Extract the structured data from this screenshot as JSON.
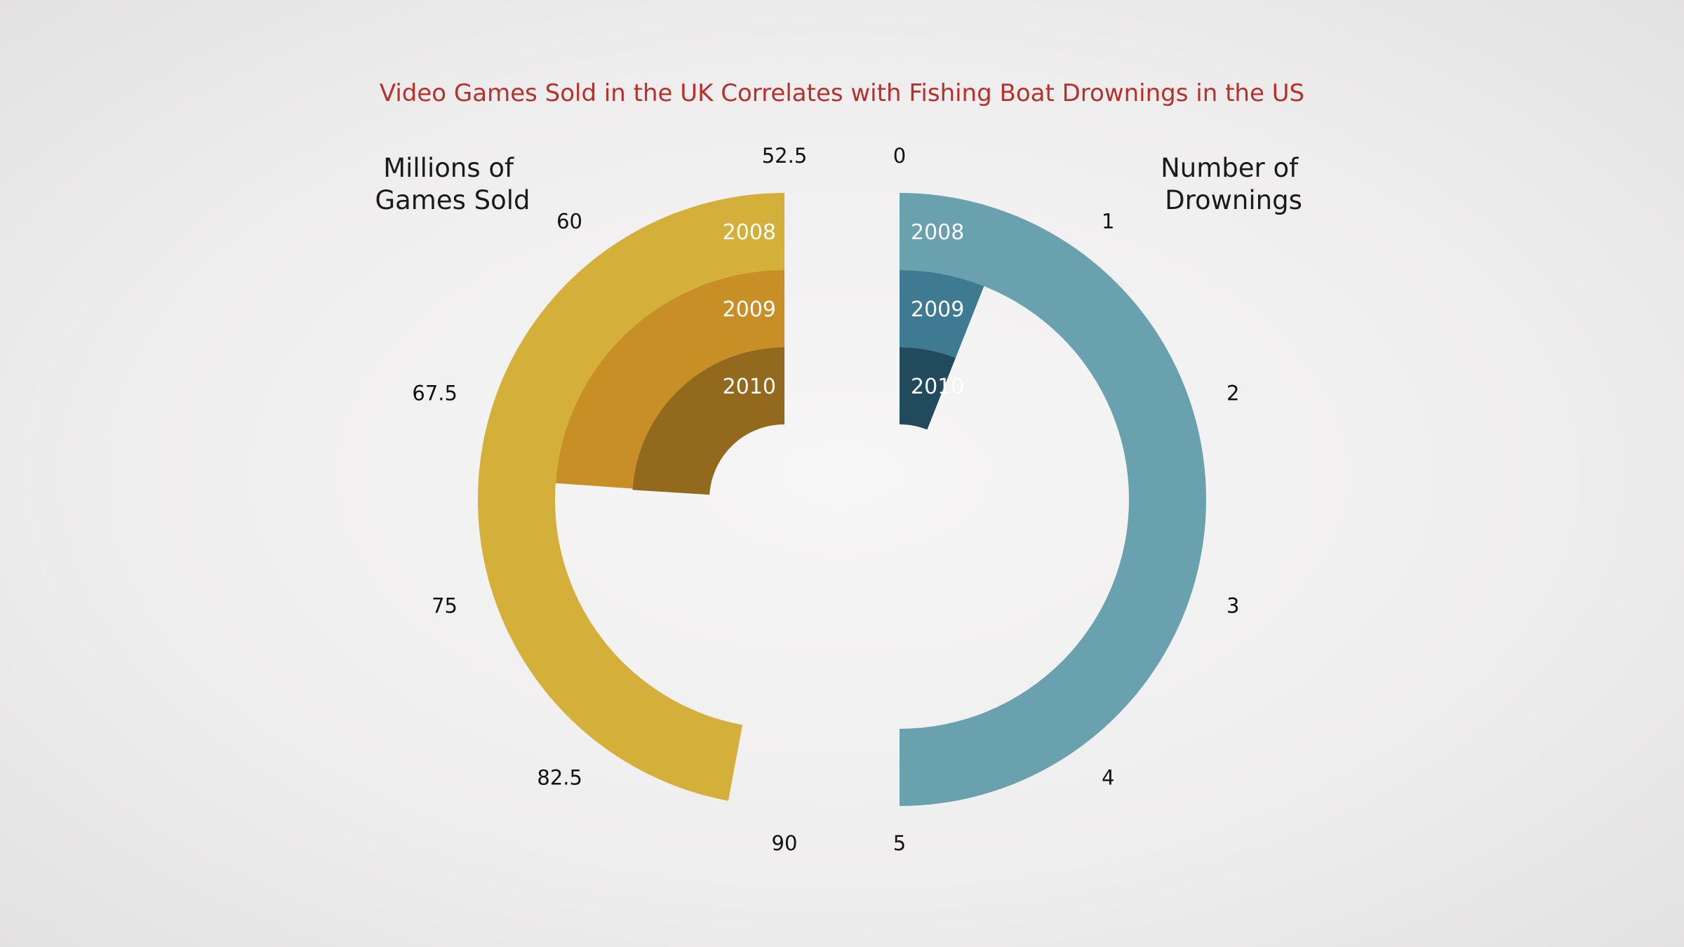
{
  "chart_data": {
    "type": "radial-bar",
    "title": "Video Games Sold in the UK Correlates with Fishing Boat Drownings in the US",
    "left": {
      "axis_title_lines": [
        "Millions of",
        "Games Sold"
      ],
      "range": [
        52.5,
        90
      ],
      "ticks": [
        "52.5",
        "60",
        "67.5",
        "75",
        "82.5",
        "90"
      ],
      "series": [
        {
          "year": "2008",
          "value": 87.8,
          "color": "#d4b03a"
        },
        {
          "year": "2009",
          "value": 70.4,
          "color": "#c88f27"
        },
        {
          "year": "2010",
          "value": 70.5,
          "color": "#93691d"
        }
      ]
    },
    "right": {
      "axis_title_lines": [
        "Number of",
        "Drownings"
      ],
      "range": [
        0,
        5
      ],
      "ticks": [
        "0",
        "1",
        "2",
        "3",
        "4",
        "5"
      ],
      "series": [
        {
          "year": "2008",
          "value": 5.0,
          "color": "#6aa1ae"
        },
        {
          "year": "2009",
          "value": 0.6,
          "color": "#3e7a92"
        },
        {
          "year": "2010",
          "value": 0.6,
          "color": "#224a5d"
        }
      ]
    }
  }
}
